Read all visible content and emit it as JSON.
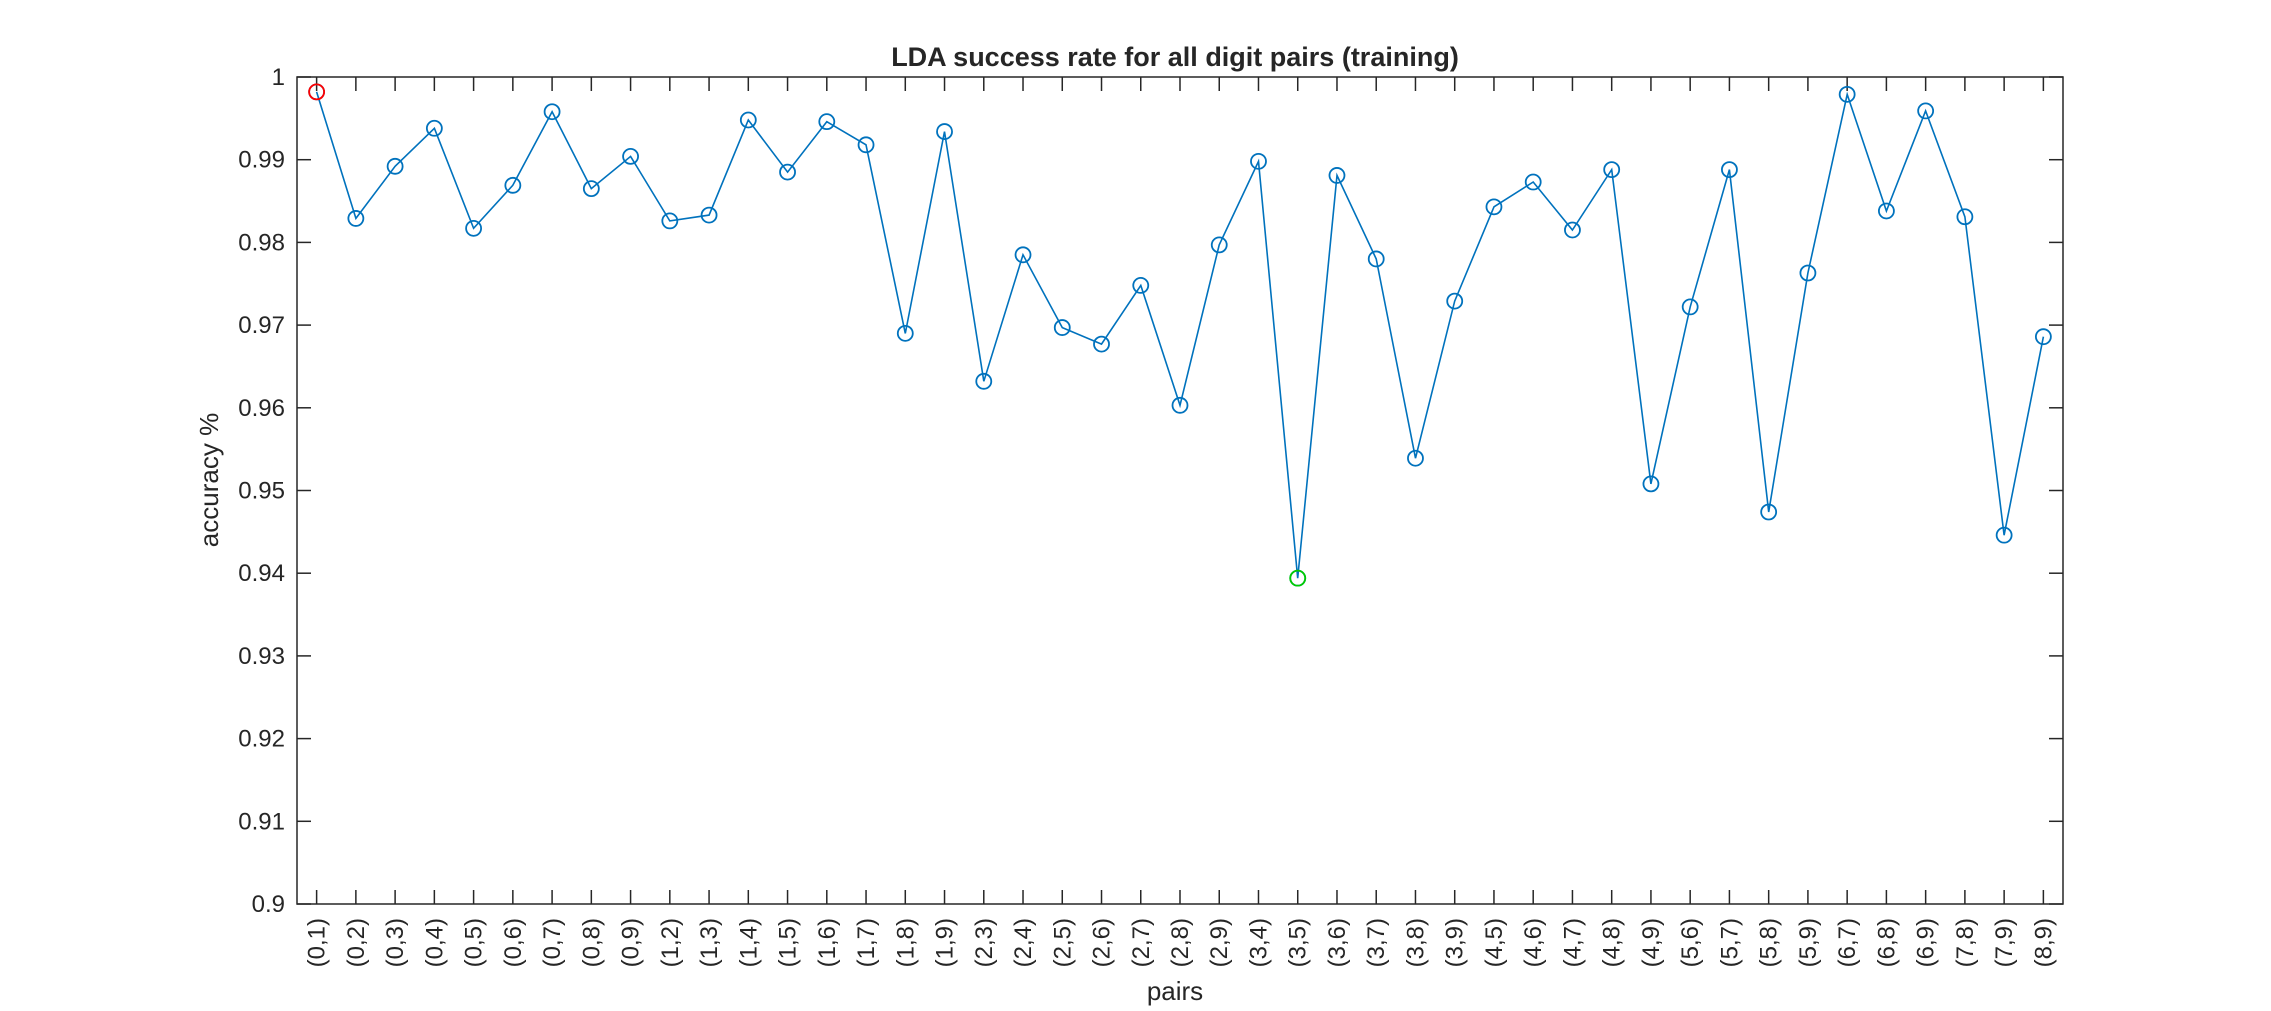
{
  "chart_data": {
    "type": "line",
    "title": "LDA success rate for all digit pairs (training)",
    "xlabel": "pairs",
    "ylabel": "accuracy %",
    "ylim": [
      0.9,
      1
    ],
    "yticks": [
      "0.9",
      "0.91",
      "0.92",
      "0.93",
      "0.94",
      "0.95",
      "0.96",
      "0.97",
      "0.98",
      "0.99",
      "1"
    ],
    "grid": false,
    "categories": [
      "(0,1)",
      "(0,2)",
      "(0,3)",
      "(0,4)",
      "(0,5)",
      "(0,6)",
      "(0,7)",
      "(0,8)",
      "(0,9)",
      "(1,2)",
      "(1,3)",
      "(1,4)",
      "(1,5)",
      "(1,6)",
      "(1,7)",
      "(1,8)",
      "(1,9)",
      "(2,3)",
      "(2,4)",
      "(2,5)",
      "(2,6)",
      "(2,7)",
      "(2,8)",
      "(2,9)",
      "(3,4)",
      "(3,5)",
      "(3,6)",
      "(3,7)",
      "(3,8)",
      "(3,9)",
      "(4,5)",
      "(4,6)",
      "(4,7)",
      "(4,8)",
      "(4,9)",
      "(5,6)",
      "(5,7)",
      "(5,8)",
      "(5,9)",
      "(6,7)",
      "(6,8)",
      "(6,9)",
      "(7,8)",
      "(7,9)",
      "(8,9)"
    ],
    "series": [
      {
        "color": "#0072BD",
        "marker": "circle",
        "values": [
          0.9982,
          0.9829,
          0.9892,
          0.9938,
          0.9817,
          0.9869,
          0.9958,
          0.9865,
          0.9904,
          0.9826,
          0.9833,
          0.9948,
          0.9885,
          0.9946,
          0.9918,
          0.969,
          0.9934,
          0.9632,
          0.9785,
          0.9697,
          0.9677,
          0.9748,
          0.9603,
          0.9797,
          0.9898,
          0.9394,
          0.9881,
          0.978,
          0.9539,
          0.9729,
          0.9843,
          0.9873,
          0.9815,
          0.9888,
          0.9508,
          0.9722,
          0.9888,
          0.9474,
          0.9763,
          0.9979,
          0.9838,
          0.9959,
          0.9831,
          0.9446,
          0.9686
        ]
      }
    ],
    "highlights": [
      {
        "category": "(0,1)",
        "value": 0.9982,
        "color": "#FF0000"
      },
      {
        "category": "(3,5)",
        "value": 0.9394,
        "color": "#00CC00"
      }
    ]
  }
}
